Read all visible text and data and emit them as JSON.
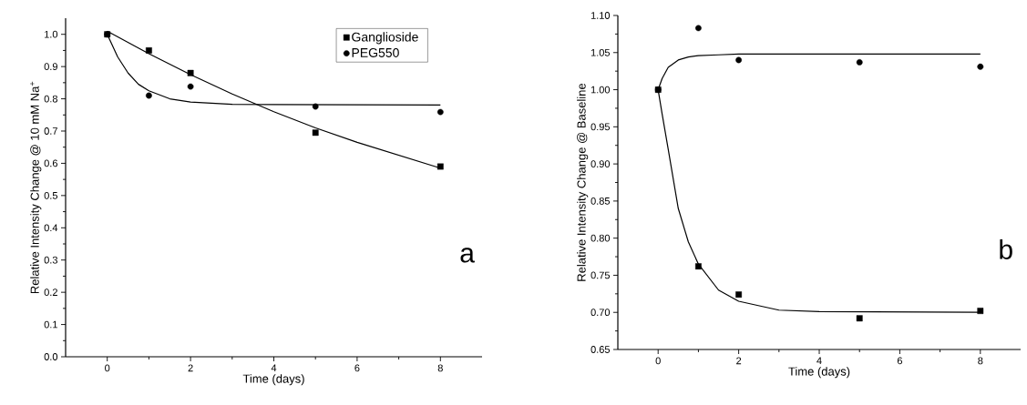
{
  "chart_data": [
    {
      "type": "scatter",
      "xlabel": "Time (days)",
      "ylabel": "Relative Intensity Change @ 10 mM Na$^{+}$",
      "annotations": [
        "a"
      ],
      "xlim": [
        -1,
        9
      ],
      "ylim": [
        0,
        1.05
      ],
      "xticks": [
        0,
        2,
        4,
        6,
        8
      ],
      "yticks": [
        {
          "value": 0,
          "label": "0.0"
        },
        {
          "value": 0.1,
          "label": "0.1"
        },
        {
          "value": 0.2,
          "label": "0.2"
        },
        {
          "value": 0.3,
          "label": "0.3"
        },
        {
          "value": 0.4,
          "label": "0.4"
        },
        {
          "value": 0.5,
          "label": "0.5"
        },
        {
          "value": 0.6,
          "label": "0.6"
        },
        {
          "value": 0.7,
          "label": "0.7"
        },
        {
          "value": 0.8,
          "label": "0.8"
        },
        {
          "value": 0.9,
          "label": "0.9"
        },
        {
          "value": 1.0,
          "label": "1.0"
        }
      ],
      "legend": "top right",
      "grid": false,
      "series": [
        {
          "name": "Ganglioside",
          "marker": "square",
          "color": "#000000",
          "x": [
            0,
            1,
            2,
            5,
            8
          ],
          "values": [
            1.0,
            0.95,
            0.88,
            0.695,
            0.59
          ]
        },
        {
          "name": "PEG550",
          "marker": "circle",
          "color": "#000000",
          "x": [
            0,
            1,
            2,
            5,
            8
          ],
          "values": [
            1.0,
            0.81,
            0.838,
            0.776,
            0.759
          ]
        },
        {
          "type": "line",
          "marker": "none",
          "color": "#000000",
          "x": [
            0,
            1,
            2,
            3,
            4,
            5,
            6,
            7,
            8
          ],
          "values": [
            1.01,
            0.94,
            0.875,
            0.815,
            0.76,
            0.71,
            0.665,
            0.625,
            0.585
          ]
        },
        {
          "type": "line",
          "marker": "none",
          "color": "#000000",
          "x": [
            0,
            0.25,
            0.5,
            0.75,
            1,
            1.5,
            2,
            3,
            4,
            8
          ],
          "values": [
            1.0,
            0.93,
            0.88,
            0.845,
            0.825,
            0.8,
            0.79,
            0.783,
            0.782,
            0.781
          ]
        }
      ]
    },
    {
      "type": "scatter",
      "xlabel": "Time (days)",
      "ylabel": "Relative Intensity Change @ Baseline",
      "annotations": [
        "b"
      ],
      "xlim": [
        -1,
        9
      ],
      "ylim": [
        0.65,
        1.1
      ],
      "xticks": [
        0,
        2,
        4,
        6,
        8
      ],
      "yticks": [
        {
          "value": 0.65,
          "label": "0.65"
        },
        {
          "value": 0.7,
          "label": "0.70"
        },
        {
          "value": 0.75,
          "label": "0.75"
        },
        {
          "value": 0.8,
          "label": "0.80"
        },
        {
          "value": 0.85,
          "label": "0.85"
        },
        {
          "value": 0.9,
          "label": "0.90"
        },
        {
          "value": 0.95,
          "label": "0.95"
        },
        {
          "value": 1.0,
          "label": "1.00"
        },
        {
          "value": 1.05,
          "label": "1.05"
        },
        {
          "value": 1.1,
          "label": "1.10"
        }
      ],
      "legend": false,
      "grid": false,
      "series": [
        {
          "marker": "square",
          "color": "#000000",
          "x": [
            0,
            1,
            2,
            5,
            8
          ],
          "values": [
            1.0,
            0.762,
            0.724,
            0.692,
            0.702
          ]
        },
        {
          "marker": "circle",
          "color": "#000000",
          "x": [
            0,
            1,
            2,
            5,
            8
          ],
          "values": [
            1.0,
            1.083,
            1.04,
            1.037,
            1.031
          ]
        },
        {
          "type": "line",
          "marker": "none",
          "color": "#000000",
          "x": [
            0,
            0.1,
            0.25,
            0.5,
            0.75,
            1,
            1.5,
            2,
            3,
            4,
            8
          ],
          "values": [
            1.0,
            0.967,
            0.92,
            0.84,
            0.795,
            0.765,
            0.73,
            0.715,
            0.703,
            0.701,
            0.7
          ]
        },
        {
          "type": "line",
          "marker": "none",
          "color": "#000000",
          "x": [
            0,
            0.1,
            0.25,
            0.5,
            0.75,
            1,
            1.5,
            2,
            8
          ],
          "values": [
            1.0,
            1.015,
            1.03,
            1.04,
            1.044,
            1.046,
            1.047,
            1.048,
            1.048
          ]
        }
      ]
    }
  ]
}
